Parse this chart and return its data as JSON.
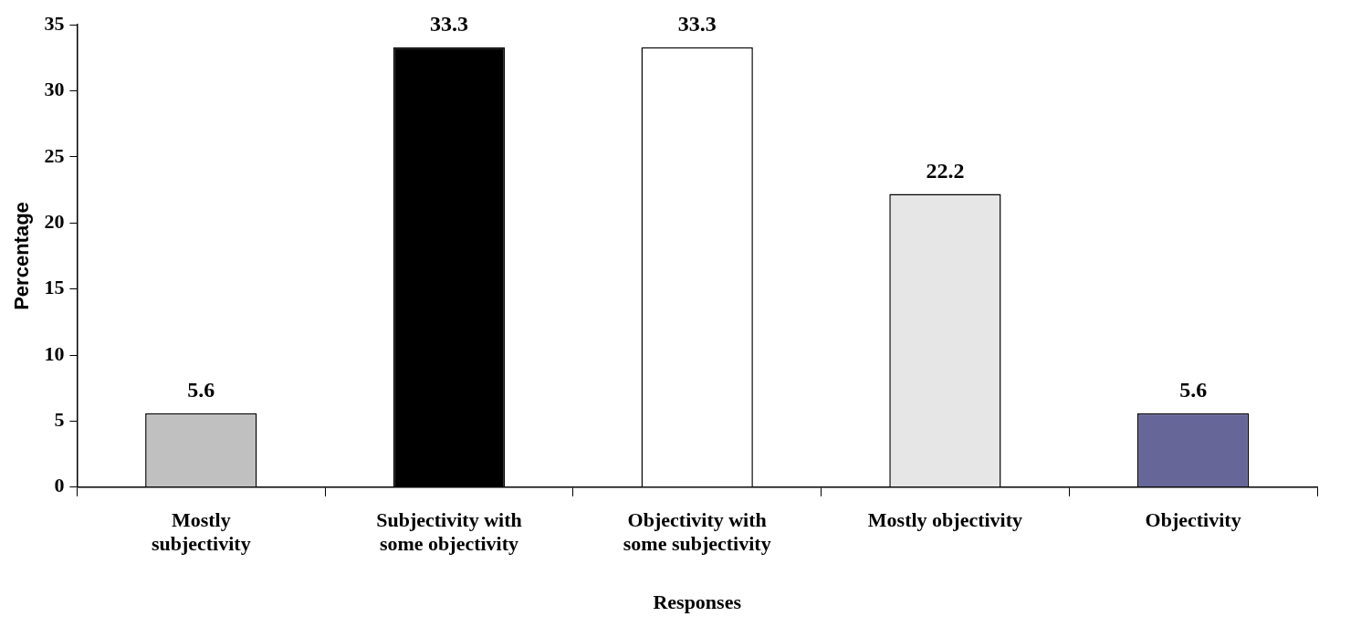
{
  "chart_data": {
    "type": "bar",
    "xlabel": "Responses",
    "ylabel": "Percentage",
    "categories": [
      "Mostly subjectivity",
      "Subjectivity with some objectivity",
      "Objectivity with some subjectivity",
      "Mostly objectivity",
      "Objectivity"
    ],
    "values": [
      5.6,
      33.3,
      33.3,
      22.2,
      5.6
    ],
    "colors": [
      "#c0c0c0",
      "#000000",
      "#ffffff",
      "#e6e6e6",
      "#666699"
    ],
    "ylim": [
      0,
      35
    ],
    "yticks": [
      0,
      5,
      10,
      15,
      20,
      25,
      30,
      35
    ],
    "grid": false,
    "legend": false,
    "data_labels": true
  }
}
